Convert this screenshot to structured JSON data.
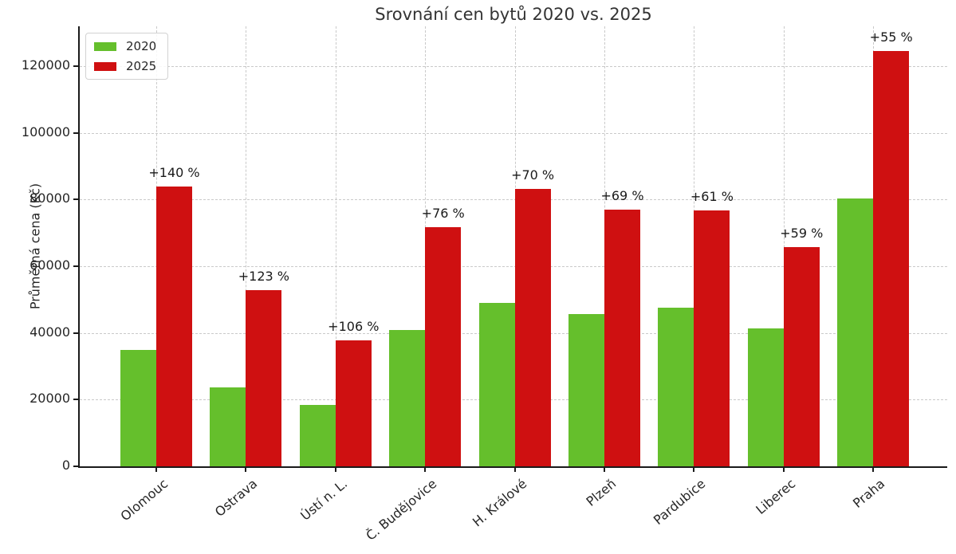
{
  "title": "Srovnání cen bytů 2020 vs. 2025",
  "chart_data": {
    "type": "bar",
    "title": "Srovnání cen bytů 2020 vs. 2025",
    "xlabel": "",
    "ylabel": "Průměrná cena (Kč)",
    "categories": [
      "Olomouc",
      "Ostrava",
      "Ústí n. L.",
      "Č. Budějovice",
      "H. Králové",
      "Plzeň",
      "Pardubice",
      "Liberec",
      "Praha"
    ],
    "series": [
      {
        "name": "2020",
        "color": "#65bf2c",
        "values": [
          35000,
          23700,
          18400,
          40800,
          49000,
          45600,
          47700,
          41400,
          80300
        ]
      },
      {
        "name": "2025",
        "color": "#cf1011",
        "values": [
          84000,
          52900,
          37900,
          71800,
          83300,
          77100,
          76800,
          65800,
          124500
        ]
      }
    ],
    "pct_change_labels": [
      "+140 %",
      "+123 %",
      "+106 %",
      "+76 %",
      "+70 %",
      "+69 %",
      "+61 %",
      "+59 %",
      "+55 %"
    ],
    "yticks": [
      0,
      20000,
      40000,
      60000,
      80000,
      100000,
      120000
    ],
    "ylim": [
      0,
      132000
    ],
    "grid": "dashed gridlines on both axes",
    "legend_position": "upper left"
  },
  "colors": {
    "bar_2020": "#65bf2c",
    "bar_2025": "#cf1011",
    "grid": "#c9c9c9",
    "axis": "#1a1a1a",
    "text": "#262626",
    "title": "#333333",
    "legend_border": "#d2d2d2"
  }
}
